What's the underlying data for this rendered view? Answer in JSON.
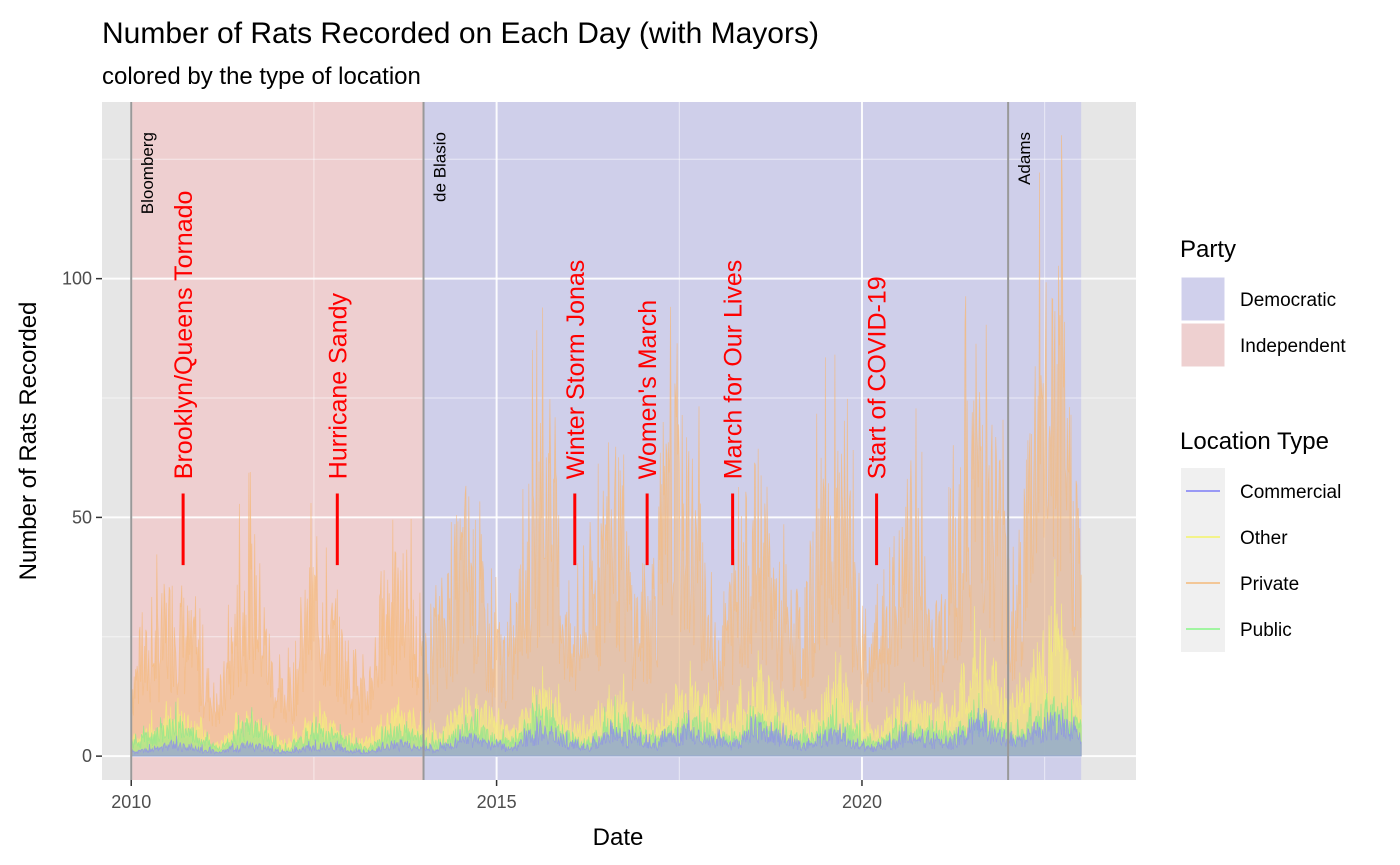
{
  "chart_data": {
    "type": "area",
    "title": "Number of Rats Recorded on Each Day (with Mayors)",
    "subtitle": "colored by the type of location",
    "xlabel": "Date",
    "ylabel": "Number of Rats Recorded",
    "xlim": [
      2009.6,
      2023.75
    ],
    "ylim": [
      -5,
      137
    ],
    "x_ticks": [
      {
        "value": 2010,
        "label": "2010"
      },
      {
        "value": 2015,
        "label": "2015"
      },
      {
        "value": 2020,
        "label": "2020"
      }
    ],
    "y_ticks": [
      {
        "value": 0,
        "label": "0"
      },
      {
        "value": 50,
        "label": "50"
      },
      {
        "value": 100,
        "label": "100"
      }
    ],
    "grid": true,
    "party_periods": [
      {
        "party": "Independent",
        "start": 2010.0,
        "end": 2014.0
      },
      {
        "party": "Democratic",
        "start": 2014.0,
        "end": 2023.0
      }
    ],
    "mayors": [
      {
        "name": "Bloomberg",
        "start": 2010.0
      },
      {
        "name": "de Blasio",
        "start": 2014.0
      },
      {
        "name": "Adams",
        "start": 2022.0
      }
    ],
    "events": [
      {
        "label": "Brooklyn/Queens Tornado",
        "x": 2010.71
      },
      {
        "label": "Hurricane Sandy",
        "x": 2012.82
      },
      {
        "label": "Winter Storm Jonas",
        "x": 2016.07
      },
      {
        "label": "Women's March",
        "x": 2017.06
      },
      {
        "label": "March for Our Lives",
        "x": 2018.23
      },
      {
        "label": "Start of COVID-19",
        "x": 2020.2
      }
    ],
    "series": [
      {
        "name": "Private",
        "color": "#f5b97a",
        "points": [
          [
            2010.0,
            20
          ],
          [
            2010.3,
            28
          ],
          [
            2010.6,
            38
          ],
          [
            2010.9,
            25
          ],
          [
            2011.2,
            12
          ],
          [
            2011.5,
            40
          ],
          [
            2011.7,
            44
          ],
          [
            2012.0,
            15
          ],
          [
            2012.2,
            18
          ],
          [
            2012.5,
            42
          ],
          [
            2012.8,
            30
          ],
          [
            2013.2,
            15
          ],
          [
            2013.5,
            40
          ],
          [
            2013.8,
            38
          ],
          [
            2014.0,
            20
          ],
          [
            2014.3,
            38
          ],
          [
            2014.6,
            55
          ],
          [
            2014.9,
            30
          ],
          [
            2015.2,
            25
          ],
          [
            2015.5,
            60
          ],
          [
            2015.7,
            75
          ],
          [
            2016.0,
            25
          ],
          [
            2016.3,
            40
          ],
          [
            2016.6,
            65
          ],
          [
            2016.9,
            35
          ],
          [
            2017.1,
            40
          ],
          [
            2017.4,
            70
          ],
          [
            2017.7,
            60
          ],
          [
            2018.0,
            25
          ],
          [
            2018.3,
            45
          ],
          [
            2018.6,
            60
          ],
          [
            2018.9,
            35
          ],
          [
            2019.2,
            30
          ],
          [
            2019.5,
            65
          ],
          [
            2019.8,
            55
          ],
          [
            2020.1,
            22
          ],
          [
            2020.4,
            38
          ],
          [
            2020.7,
            55
          ],
          [
            2021.0,
            30
          ],
          [
            2021.3,
            55
          ],
          [
            2021.6,
            85
          ],
          [
            2021.9,
            60
          ],
          [
            2022.1,
            35
          ],
          [
            2022.4,
            90
          ],
          [
            2022.7,
            95
          ],
          [
            2023.0,
            50
          ]
        ]
      },
      {
        "name": "Other",
        "color": "#f5f07a",
        "points": [
          [
            2010.0,
            4
          ],
          [
            2010.6,
            10
          ],
          [
            2011.2,
            3
          ],
          [
            2011.6,
            9
          ],
          [
            2012.1,
            3
          ],
          [
            2012.6,
            9
          ],
          [
            2013.2,
            3
          ],
          [
            2013.6,
            10
          ],
          [
            2014.2,
            5
          ],
          [
            2014.6,
            14
          ],
          [
            2015.2,
            6
          ],
          [
            2015.6,
            15
          ],
          [
            2016.2,
            6
          ],
          [
            2016.6,
            14
          ],
          [
            2017.2,
            7
          ],
          [
            2017.6,
            16
          ],
          [
            2018.2,
            8
          ],
          [
            2018.6,
            18
          ],
          [
            2019.2,
            7
          ],
          [
            2019.6,
            17
          ],
          [
            2020.2,
            5
          ],
          [
            2020.6,
            12
          ],
          [
            2021.2,
            10
          ],
          [
            2021.6,
            25
          ],
          [
            2022.1,
            12
          ],
          [
            2022.6,
            30
          ],
          [
            2023.0,
            15
          ]
        ]
      },
      {
        "name": "Public",
        "color": "#8ce88c",
        "points": [
          [
            2010.0,
            3
          ],
          [
            2010.6,
            8
          ],
          [
            2011.2,
            2
          ],
          [
            2011.6,
            8
          ],
          [
            2012.1,
            2
          ],
          [
            2012.6,
            7
          ],
          [
            2013.2,
            2
          ],
          [
            2013.6,
            7
          ],
          [
            2014.2,
            3
          ],
          [
            2014.6,
            8
          ],
          [
            2015.2,
            3
          ],
          [
            2015.6,
            10
          ],
          [
            2016.2,
            3
          ],
          [
            2016.6,
            9
          ],
          [
            2017.2,
            4
          ],
          [
            2017.6,
            9
          ],
          [
            2018.2,
            4
          ],
          [
            2018.6,
            9
          ],
          [
            2019.2,
            4
          ],
          [
            2019.6,
            9
          ],
          [
            2020.2,
            3
          ],
          [
            2020.6,
            7
          ],
          [
            2021.2,
            5
          ],
          [
            2021.6,
            10
          ],
          [
            2022.1,
            5
          ],
          [
            2022.6,
            12
          ],
          [
            2023.0,
            7
          ]
        ]
      },
      {
        "name": "Commercial",
        "color": "#8c8cf0",
        "points": [
          [
            2010.0,
            1
          ],
          [
            2010.6,
            3
          ],
          [
            2011.2,
            1
          ],
          [
            2011.6,
            3
          ],
          [
            2012.1,
            1
          ],
          [
            2012.6,
            3
          ],
          [
            2013.2,
            1
          ],
          [
            2013.6,
            3
          ],
          [
            2014.2,
            2
          ],
          [
            2014.6,
            5
          ],
          [
            2015.2,
            2
          ],
          [
            2015.6,
            7
          ],
          [
            2016.2,
            2
          ],
          [
            2016.6,
            6
          ],
          [
            2017.2,
            3
          ],
          [
            2017.6,
            7
          ],
          [
            2018.2,
            3
          ],
          [
            2018.6,
            7
          ],
          [
            2019.2,
            3
          ],
          [
            2019.6,
            6
          ],
          [
            2020.2,
            2
          ],
          [
            2020.6,
            5
          ],
          [
            2021.2,
            3
          ],
          [
            2021.6,
            8
          ],
          [
            2022.1,
            4
          ],
          [
            2022.6,
            9
          ],
          [
            2023.0,
            5
          ]
        ]
      }
    ],
    "legend": {
      "position": "right",
      "party_title": "Party",
      "party_entries": [
        {
          "label": "Democratic",
          "color": "#d0d0ec"
        },
        {
          "label": "Independent",
          "color": "#eed0d0"
        }
      ],
      "location_title": "Location Type",
      "location_entries": [
        {
          "label": "Commercial",
          "color": "#9999f5"
        },
        {
          "label": "Other",
          "color": "#f3f38a"
        },
        {
          "label": "Private",
          "color": "#f3c797"
        },
        {
          "label": "Public",
          "color": "#a1f5a1"
        }
      ]
    },
    "colors": {
      "panel_bg": "#e6e6e6",
      "independent": "#eecfd0",
      "democratic": "#cfcfea",
      "event": "#ff0000",
      "mayor_line": "#999999"
    }
  }
}
